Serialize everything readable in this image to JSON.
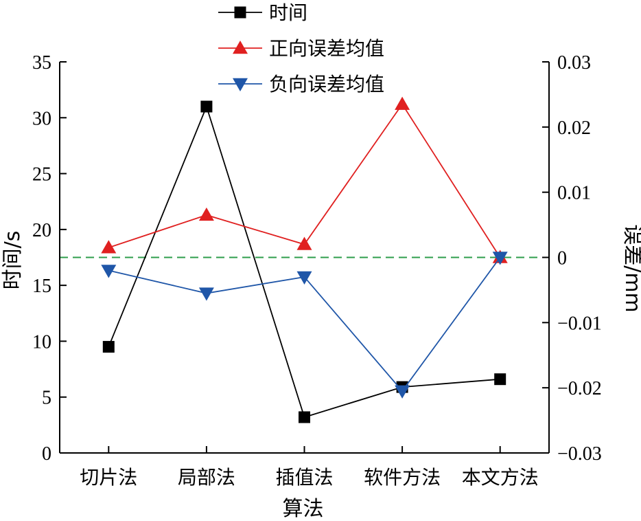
{
  "chart_data": {
    "type": "line",
    "categories": [
      "切片法",
      "局部法",
      "插值法",
      "软件方法",
      "本文方法"
    ],
    "xlabel": "算法",
    "ylabel_left": "时间/s",
    "ylabel_right": "误差/mm",
    "ylim_left": [
      0,
      35
    ],
    "ylim_right": [
      -0.03,
      0.03
    ],
    "yticks_left": [
      "0",
      "5",
      "10",
      "15",
      "20",
      "25",
      "30",
      "35"
    ],
    "yticks_right": [
      "−0.03",
      "−0.02",
      "−0.01",
      "0",
      "0.01",
      "0.02",
      "0.03"
    ],
    "legend_position": "top-center",
    "reference_line": {
      "axis": "right",
      "value": 0,
      "style": "dashed",
      "color": "#2e9e4b"
    },
    "series": [
      {
        "name": "时间",
        "axis": "left",
        "marker": "square",
        "color": "#000000",
        "values": [
          9.5,
          31.0,
          3.2,
          5.9,
          6.6
        ]
      },
      {
        "name": "正向误差均值",
        "axis": "right",
        "marker": "triangle-up",
        "color": "#e02020",
        "values": [
          0.0015,
          0.0065,
          0.002,
          0.0235,
          0.0
        ]
      },
      {
        "name": "负向误差均值",
        "axis": "right",
        "marker": "triangle-down",
        "color": "#1f56a8",
        "values": [
          -0.002,
          -0.0055,
          -0.003,
          -0.0205,
          0.0
        ]
      }
    ]
  }
}
